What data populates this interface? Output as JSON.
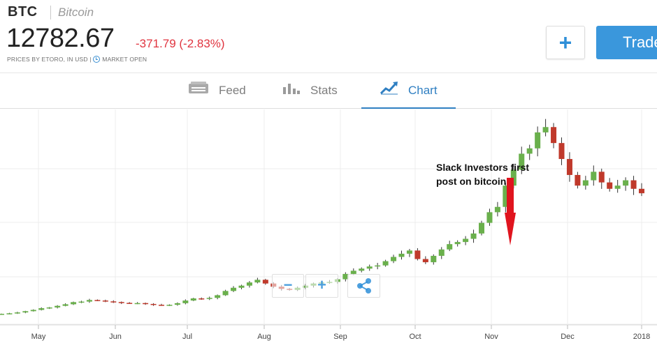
{
  "instrument": {
    "symbol": "BTC",
    "name": "Bitcoin",
    "price": "12782.67",
    "change": "-371.79 (-2.83%)",
    "prices_note": "PRICES BY ETORO, IN USD |",
    "market_status": "MARKET OPEN"
  },
  "actions": {
    "add_symbol": "+",
    "trade_label": "Trade"
  },
  "tabs": [
    {
      "label": "Feed",
      "icon": "feed-icon",
      "active": false
    },
    {
      "label": "Stats",
      "icon": "bar-chart-icon",
      "active": false
    },
    {
      "label": "Chart",
      "icon": "trend-line-icon",
      "active": true
    }
  ],
  "colors": {
    "up": "#6ab04c",
    "down": "#c0392b",
    "accent": "#2f7fc2",
    "negative_text": "#e0343f"
  },
  "chart_data": {
    "type": "candlestick",
    "x_tick_labels": [
      "May",
      "Jun",
      "Jul",
      "Aug",
      "Sep",
      "Oct",
      "Nov",
      "Dec",
      "2018"
    ],
    "annotation": "Slack Investors first post on bitcoin",
    "series_close": [
      1450,
      1500,
      1580,
      1700,
      1820,
      1980,
      2050,
      2200,
      2350,
      2550,
      2600,
      2750,
      2700,
      2620,
      2560,
      2480,
      2430,
      2460,
      2380,
      2300,
      2250,
      2300,
      2450,
      2700,
      2900,
      2850,
      2950,
      3200,
      3600,
      3900,
      4100,
      4400,
      4650,
      4300,
      4000,
      3800,
      3700,
      3900,
      4100,
      4300,
      4400,
      4450,
      4700,
      5200,
      5500,
      5700,
      5900,
      6000,
      6400,
      6800,
      7100,
      7400,
      6600,
      6300,
      6900,
      7500,
      8000,
      8200,
      8500,
      9000,
      10000,
      11000,
      11500,
      13500,
      15000,
      16500,
      17000,
      18500,
      19000,
      17500,
      16000,
      14500,
      13500,
      14000,
      14800,
      13800,
      13200,
      13500,
      14000,
      13200,
      12782
    ]
  },
  "chart_controls": {
    "zoom_out": "−",
    "zoom_in": "+"
  }
}
